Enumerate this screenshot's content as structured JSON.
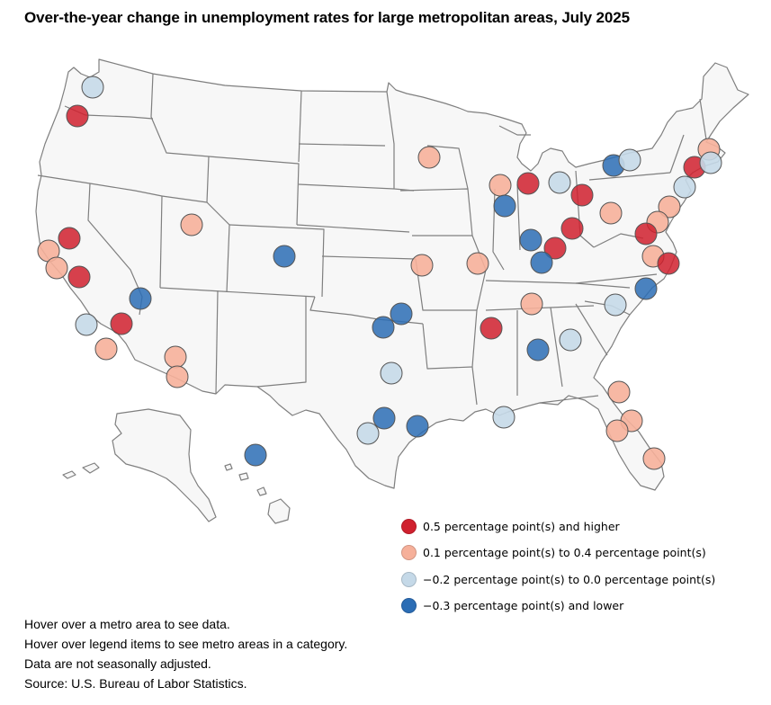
{
  "title": "Over-the-year change in unemployment rates for large metropolitan areas, July 2025",
  "legend": [
    {
      "key": "high",
      "label": "0.5 percentage point(s) and higher",
      "color": "#d0202e"
    },
    {
      "key": "mid",
      "label": "0.1 percentage point(s) to 0.4 percentage point(s)",
      "color": "#f6b09a"
    },
    {
      "key": "low",
      "label": "−0.2 percentage point(s) to 0.0 percentage point(s)",
      "color": "#c5d9e8"
    },
    {
      "key": "lowest",
      "label": "−0.3 percentage point(s) and lower",
      "color": "#2b6db5"
    }
  ],
  "notes": [
    "Hover over a metro area to see data.",
    "Hover over legend items to see metro areas in a category.",
    "Data are not seasonally adjusted.",
    "Source: U.S. Bureau of Labor Statistics."
  ],
  "colors": {
    "land_fill": "#f7f7f7",
    "state_border": "#7f7f7f"
  },
  "metro_area_count_by_category": {
    "high": 14,
    "mid": 21,
    "low": 12,
    "lowest": 13
  }
}
